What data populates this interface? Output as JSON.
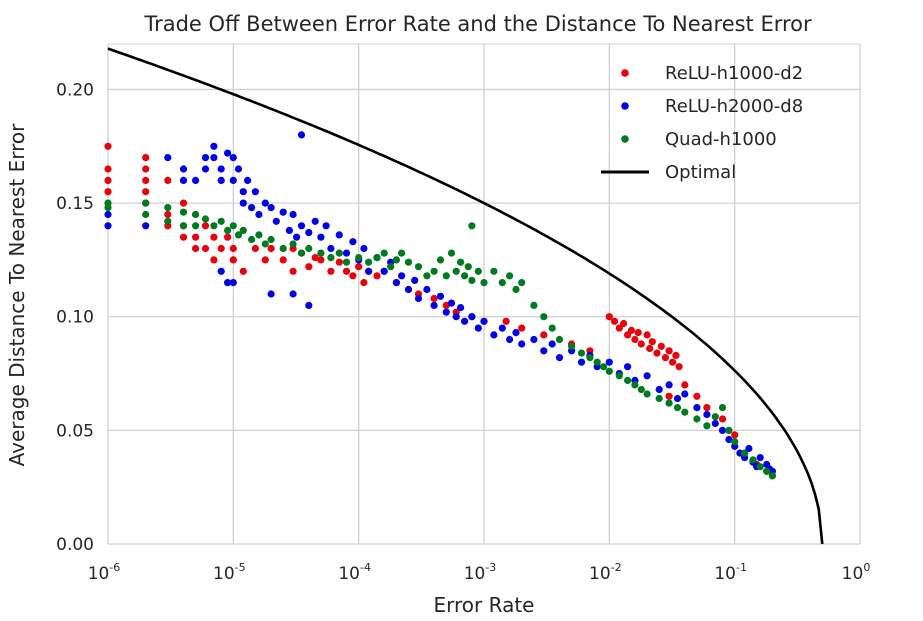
{
  "chart_data": {
    "type": "scatter",
    "title": "Trade Off Between Error Rate and the Distance To Nearest Error",
    "xlabel": "Error Rate",
    "ylabel": "Average Distance To Nearest Error",
    "xscale": "log",
    "xlim": [
      1e-06,
      1
    ],
    "ylim": [
      0.0,
      0.22
    ],
    "grid": true,
    "legend_position": "top-right",
    "x_ticks": [
      {
        "value": 1e-06,
        "base": "10",
        "exp": "-6"
      },
      {
        "value": 1e-05,
        "base": "10",
        "exp": "-5"
      },
      {
        "value": 0.0001,
        "base": "10",
        "exp": "-4"
      },
      {
        "value": 0.001,
        "base": "10",
        "exp": "-3"
      },
      {
        "value": 0.01,
        "base": "10",
        "exp": "-2"
      },
      {
        "value": 0.1,
        "base": "10",
        "exp": "-1"
      },
      {
        "value": 1,
        "base": "10",
        "exp": "0"
      }
    ],
    "y_ticks": [
      {
        "value": 0.0,
        "label": "0.00"
      },
      {
        "value": 0.05,
        "label": "0.05"
      },
      {
        "value": 0.1,
        "label": "0.10"
      },
      {
        "value": 0.15,
        "label": "0.15"
      },
      {
        "value": 0.2,
        "label": "0.20"
      }
    ],
    "series": [
      {
        "name": "ReLU-h1000-d2",
        "color": "#e8000b",
        "kind": "points",
        "points": [
          [
            1e-06,
            0.175
          ],
          [
            1e-06,
            0.165
          ],
          [
            1e-06,
            0.16
          ],
          [
            1e-06,
            0.155
          ],
          [
            2e-06,
            0.17
          ],
          [
            2e-06,
            0.165
          ],
          [
            2e-06,
            0.16
          ],
          [
            2e-06,
            0.155
          ],
          [
            2e-06,
            0.15
          ],
          [
            3e-06,
            0.16
          ],
          [
            3e-06,
            0.145
          ],
          [
            3e-06,
            0.14
          ],
          [
            4e-06,
            0.15
          ],
          [
            4e-06,
            0.14
          ],
          [
            4e-06,
            0.135
          ],
          [
            5e-06,
            0.145
          ],
          [
            5e-06,
            0.135
          ],
          [
            5e-06,
            0.13
          ],
          [
            6e-06,
            0.14
          ],
          [
            6e-06,
            0.13
          ],
          [
            7e-06,
            0.135
          ],
          [
            7e-06,
            0.125
          ],
          [
            8e-06,
            0.13
          ],
          [
            9e-06,
            0.135
          ],
          [
            1e-05,
            0.125
          ],
          [
            1e-05,
            0.13
          ],
          [
            1.2e-05,
            0.12
          ],
          [
            1.5e-05,
            0.13
          ],
          [
            1.8e-05,
            0.125
          ],
          [
            2e-05,
            0.13
          ],
          [
            2.5e-05,
            0.125
          ],
          [
            3e-05,
            0.13
          ],
          [
            3e-05,
            0.12
          ],
          [
            3.5e-05,
            0.128
          ],
          [
            4e-05,
            0.122
          ],
          [
            4.5e-05,
            0.126
          ],
          [
            5e-05,
            0.125
          ],
          [
            6e-05,
            0.12
          ],
          [
            7e-05,
            0.124
          ],
          [
            8e-05,
            0.12
          ],
          [
            9e-05,
            0.118
          ],
          [
            0.0001,
            0.122
          ],
          [
            0.00011,
            0.115
          ],
          [
            0.00012,
            0.12
          ],
          [
            0.00014,
            0.118
          ],
          [
            0.00016,
            0.12
          ],
          [
            0.0002,
            0.115
          ],
          [
            0.00025,
            0.112
          ],
          [
            0.0003,
            0.11
          ],
          [
            0.0004,
            0.108
          ],
          [
            0.0005,
            0.105
          ],
          [
            0.0006,
            0.102
          ],
          [
            0.0008,
            0.1
          ],
          [
            0.001,
            0.098
          ],
          [
            0.0015,
            0.098
          ],
          [
            0.002,
            0.095
          ],
          [
            0.003,
            0.092
          ],
          [
            0.005,
            0.088
          ],
          [
            0.007,
            0.085
          ],
          [
            0.01,
            0.1
          ],
          [
            0.011,
            0.098
          ],
          [
            0.012,
            0.095
          ],
          [
            0.013,
            0.097
          ],
          [
            0.014,
            0.092
          ],
          [
            0.015,
            0.094
          ],
          [
            0.016,
            0.09
          ],
          [
            0.017,
            0.093
          ],
          [
            0.018,
            0.088
          ],
          [
            0.02,
            0.092
          ],
          [
            0.021,
            0.086
          ],
          [
            0.022,
            0.089
          ],
          [
            0.024,
            0.084
          ],
          [
            0.026,
            0.087
          ],
          [
            0.028,
            0.082
          ],
          [
            0.03,
            0.085
          ],
          [
            0.032,
            0.08
          ],
          [
            0.034,
            0.083
          ],
          [
            0.036,
            0.078
          ],
          [
            0.03,
            0.065
          ],
          [
            0.04,
            0.07
          ],
          [
            0.05,
            0.065
          ],
          [
            0.06,
            0.06
          ],
          [
            0.08,
            0.055
          ],
          [
            0.1,
            0.048
          ],
          [
            0.12,
            0.04
          ],
          [
            0.15,
            0.035
          ],
          [
            0.18,
            0.032
          ],
          [
            0.2,
            0.03
          ]
        ]
      },
      {
        "name": "ReLU-h2000-d8",
        "color": "#0000e8",
        "kind": "points",
        "points": [
          [
            1e-06,
            0.14
          ],
          [
            1e-06,
            0.145
          ],
          [
            2e-06,
            0.14
          ],
          [
            3e-06,
            0.17
          ],
          [
            4e-06,
            0.16
          ],
          [
            4e-06,
            0.165
          ],
          [
            5e-06,
            0.16
          ],
          [
            6e-06,
            0.17
          ],
          [
            6e-06,
            0.165
          ],
          [
            7e-06,
            0.175
          ],
          [
            7e-06,
            0.17
          ],
          [
            8e-06,
            0.165
          ],
          [
            8e-06,
            0.16
          ],
          [
            9e-06,
            0.172
          ],
          [
            1e-05,
            0.17
          ],
          [
            1e-05,
            0.16
          ],
          [
            1.1e-05,
            0.165
          ],
          [
            1.2e-05,
            0.155
          ],
          [
            1.2e-05,
            0.15
          ],
          [
            1.3e-05,
            0.16
          ],
          [
            1.4e-05,
            0.148
          ],
          [
            1.5e-05,
            0.155
          ],
          [
            1.6e-05,
            0.145
          ],
          [
            1.8e-05,
            0.15
          ],
          [
            2e-05,
            0.148
          ],
          [
            2.2e-05,
            0.142
          ],
          [
            2.5e-05,
            0.146
          ],
          [
            2.8e-05,
            0.138
          ],
          [
            3e-05,
            0.145
          ],
          [
            3.2e-05,
            0.135
          ],
          [
            3.5e-05,
            0.14
          ],
          [
            3.5e-05,
            0.18
          ],
          [
            4e-05,
            0.137
          ],
          [
            4.5e-05,
            0.142
          ],
          [
            5e-05,
            0.135
          ],
          [
            5.5e-05,
            0.14
          ],
          [
            6e-05,
            0.13
          ],
          [
            7e-05,
            0.136
          ],
          [
            8e-05,
            0.128
          ],
          [
            9e-05,
            0.133
          ],
          [
            0.0001,
            0.125
          ],
          [
            0.00011,
            0.13
          ],
          [
            0.00012,
            0.12
          ],
          [
            8e-06,
            0.12
          ],
          [
            9e-06,
            0.115
          ],
          [
            1e-05,
            0.115
          ],
          [
            2e-05,
            0.11
          ],
          [
            3e-05,
            0.11
          ],
          [
            4e-05,
            0.105
          ],
          [
            0.00014,
            0.126
          ],
          [
            0.00016,
            0.12
          ],
          [
            0.00018,
            0.124
          ],
          [
            0.0002,
            0.115
          ],
          [
            0.00022,
            0.118
          ],
          [
            0.00025,
            0.112
          ],
          [
            0.00028,
            0.116
          ],
          [
            0.0003,
            0.108
          ],
          [
            0.00035,
            0.112
          ],
          [
            0.0004,
            0.105
          ],
          [
            0.00045,
            0.109
          ],
          [
            0.0005,
            0.102
          ],
          [
            0.00055,
            0.106
          ],
          [
            0.0006,
            0.1
          ],
          [
            0.00065,
            0.104
          ],
          [
            0.0007,
            0.098
          ],
          [
            0.0008,
            0.1
          ],
          [
            0.0009,
            0.095
          ],
          [
            0.001,
            0.098
          ],
          [
            0.0012,
            0.092
          ],
          [
            0.0014,
            0.095
          ],
          [
            0.0016,
            0.09
          ],
          [
            0.0018,
            0.093
          ],
          [
            0.002,
            0.088
          ],
          [
            0.0025,
            0.09
          ],
          [
            0.003,
            0.085
          ],
          [
            0.0035,
            0.088
          ],
          [
            0.004,
            0.082
          ],
          [
            0.005,
            0.085
          ],
          [
            0.006,
            0.08
          ],
          [
            0.007,
            0.083
          ],
          [
            0.008,
            0.078
          ],
          [
            0.01,
            0.08
          ],
          [
            0.012,
            0.075
          ],
          [
            0.014,
            0.078
          ],
          [
            0.016,
            0.072
          ],
          [
            0.02,
            0.074
          ],
          [
            0.025,
            0.068
          ],
          [
            0.03,
            0.07
          ],
          [
            0.035,
            0.064
          ],
          [
            0.04,
            0.066
          ],
          [
            0.05,
            0.06
          ],
          [
            0.06,
            0.057
          ],
          [
            0.07,
            0.053
          ],
          [
            0.08,
            0.05
          ],
          [
            0.09,
            0.046
          ],
          [
            0.1,
            0.043
          ],
          [
            0.11,
            0.04
          ],
          [
            0.12,
            0.038
          ],
          [
            0.13,
            0.042
          ],
          [
            0.14,
            0.036
          ],
          [
            0.15,
            0.034
          ],
          [
            0.16,
            0.038
          ],
          [
            0.18,
            0.035
          ],
          [
            0.19,
            0.033
          ],
          [
            0.2,
            0.032
          ]
        ]
      },
      {
        "name": "Quad-h1000",
        "color": "#007a1f",
        "kind": "points",
        "points": [
          [
            1e-06,
            0.15
          ],
          [
            1e-06,
            0.148
          ],
          [
            2e-06,
            0.15
          ],
          [
            2e-06,
            0.145
          ],
          [
            3e-06,
            0.148
          ],
          [
            3e-06,
            0.142
          ],
          [
            4e-06,
            0.146
          ],
          [
            4e-06,
            0.14
          ],
          [
            5e-06,
            0.145
          ],
          [
            5e-06,
            0.14
          ],
          [
            6e-06,
            0.143
          ],
          [
            7e-06,
            0.14
          ],
          [
            8e-06,
            0.142
          ],
          [
            9e-06,
            0.138
          ],
          [
            1e-05,
            0.14
          ],
          [
            1.1e-05,
            0.136
          ],
          [
            1.2e-05,
            0.138
          ],
          [
            1.4e-05,
            0.134
          ],
          [
            1.6e-05,
            0.136
          ],
          [
            1.8e-05,
            0.132
          ],
          [
            2e-05,
            0.134
          ],
          [
            2.5e-05,
            0.13
          ],
          [
            3e-05,
            0.132
          ],
          [
            3.5e-05,
            0.128
          ],
          [
            4e-05,
            0.13
          ],
          [
            5e-05,
            0.128
          ],
          [
            6e-05,
            0.126
          ],
          [
            7e-05,
            0.128
          ],
          [
            8e-05,
            0.124
          ],
          [
            0.0001,
            0.126
          ],
          [
            0.00012,
            0.124
          ],
          [
            0.00014,
            0.126
          ],
          [
            0.00016,
            0.128
          ],
          [
            0.00018,
            0.122
          ],
          [
            0.0002,
            0.125
          ],
          [
            0.00022,
            0.128
          ],
          [
            0.00025,
            0.124
          ],
          [
            0.0003,
            0.122
          ],
          [
            0.00035,
            0.118
          ],
          [
            0.0004,
            0.12
          ],
          [
            0.00045,
            0.125
          ],
          [
            0.0005,
            0.118
          ],
          [
            0.00055,
            0.128
          ],
          [
            0.0006,
            0.12
          ],
          [
            0.00065,
            0.124
          ],
          [
            0.0007,
            0.118
          ],
          [
            0.00075,
            0.122
          ],
          [
            0.0008,
            0.116
          ],
          [
            0.0009,
            0.12
          ],
          [
            0.001,
            0.115
          ],
          [
            0.0012,
            0.12
          ],
          [
            0.0014,
            0.115
          ],
          [
            0.0016,
            0.118
          ],
          [
            0.0018,
            0.112
          ],
          [
            0.002,
            0.115
          ],
          [
            0.0008,
            0.14
          ],
          [
            0.0025,
            0.105
          ],
          [
            0.003,
            0.1
          ],
          [
            0.0035,
            0.095
          ],
          [
            0.004,
            0.09
          ],
          [
            0.005,
            0.087
          ],
          [
            0.006,
            0.084
          ],
          [
            0.007,
            0.082
          ],
          [
            0.008,
            0.08
          ],
          [
            0.009,
            0.078
          ],
          [
            0.01,
            0.076
          ],
          [
            0.012,
            0.074
          ],
          [
            0.014,
            0.072
          ],
          [
            0.016,
            0.07
          ],
          [
            0.018,
            0.068
          ],
          [
            0.02,
            0.066
          ],
          [
            0.025,
            0.064
          ],
          [
            0.03,
            0.062
          ],
          [
            0.035,
            0.06
          ],
          [
            0.04,
            0.058
          ],
          [
            0.05,
            0.055
          ],
          [
            0.06,
            0.052
          ],
          [
            0.07,
            0.056
          ],
          [
            0.08,
            0.06
          ],
          [
            0.09,
            0.05
          ],
          [
            0.1,
            0.045
          ],
          [
            0.12,
            0.04
          ],
          [
            0.14,
            0.037
          ],
          [
            0.16,
            0.034
          ],
          [
            0.18,
            0.032
          ],
          [
            0.2,
            0.03
          ]
        ]
      },
      {
        "name": "Optimal",
        "color": "#000000",
        "kind": "line"
      }
    ]
  }
}
